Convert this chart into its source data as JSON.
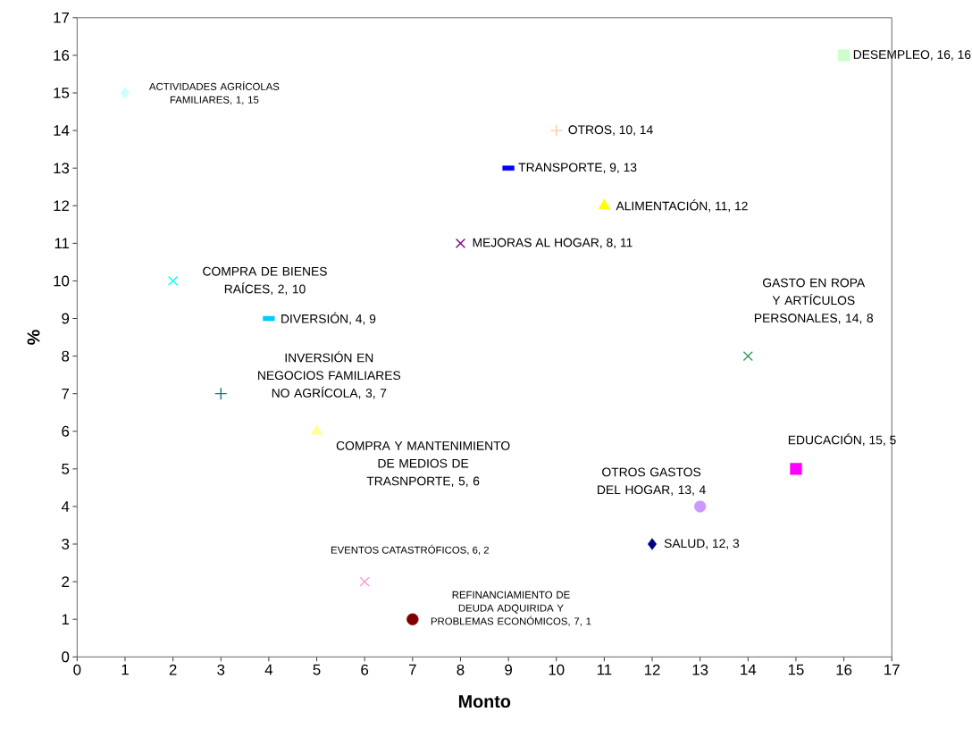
{
  "chart_data": {
    "type": "scatter",
    "xlabel": "Monto",
    "ylabel": "%",
    "xlim": [
      0,
      17
    ],
    "ylim": [
      0,
      17
    ],
    "xticks": [
      0,
      1,
      2,
      3,
      4,
      5,
      6,
      7,
      8,
      9,
      10,
      11,
      12,
      13,
      14,
      15,
      16,
      17
    ],
    "yticks": [
      0,
      1,
      2,
      3,
      4,
      5,
      6,
      7,
      8,
      9,
      10,
      11,
      12,
      13,
      14,
      15,
      16,
      17
    ],
    "grid": false,
    "series": [
      {
        "x": [
          1
        ],
        "values": [
          15
        ],
        "color": "#ccffff",
        "marker": "diamond"
      },
      {
        "x": [
          2
        ],
        "values": [
          10
        ],
        "color": "#00ffff",
        "marker": "cross"
      },
      {
        "x": [
          3
        ],
        "values": [
          7
        ],
        "color": "#008080",
        "marker": "plus"
      },
      {
        "x": [
          4
        ],
        "values": [
          9
        ],
        "color": "#00ccff",
        "marker": "square"
      },
      {
        "x": [
          5
        ],
        "values": [
          6
        ],
        "color": "#ffff99",
        "marker": "triangle"
      },
      {
        "x": [
          6
        ],
        "values": [
          2
        ],
        "color": "#ff99cc",
        "marker": "cross"
      },
      {
        "x": [
          7
        ],
        "values": [
          1
        ],
        "color": "#800000",
        "marker": "circle"
      },
      {
        "x": [
          8
        ],
        "values": [
          11
        ],
        "color": "#800080",
        "marker": "cross"
      },
      {
        "x": [
          9
        ],
        "values": [
          13
        ],
        "color": "#0000ff",
        "marker": "square"
      },
      {
        "x": [
          10
        ],
        "values": [
          14
        ],
        "color": "#ffcc99",
        "marker": "plus"
      },
      {
        "x": [
          11
        ],
        "values": [
          12
        ],
        "color": "#ffff00",
        "marker": "triangle"
      },
      {
        "x": [
          12
        ],
        "values": [
          3
        ],
        "color": "#000080",
        "marker": "diamond"
      },
      {
        "x": [
          13
        ],
        "values": [
          4
        ],
        "color": "#cc99ff",
        "marker": "circle"
      },
      {
        "x": [
          14
        ],
        "values": [
          8
        ],
        "color": "#339966",
        "marker": "cross"
      },
      {
        "x": [
          15
        ],
        "values": [
          5
        ],
        "color": "#ff00ff",
        "marker": "square"
      },
      {
        "x": [
          16
        ],
        "values": [
          16
        ],
        "color": "#ccffcc",
        "marker": "square"
      }
    ],
    "annotations": [
      "ACTIVIDADES AGRÍCOLAS FAMILIARES, 1, 15",
      "COMPRA DE BIENES RAÍCES, 2, 10",
      "INVERSIÓN EN NEGOCIOS FAMILIARES NO AGRÍCOLA, 3, 7",
      "DIVERSIÓN, 4, 9",
      "COMPRA Y MANTENIMIENTO DE MEDIOS DE TRASNPORTE, 5, 6",
      "EVENTOS CATASTRÓFICOS, 6, 2",
      "REFINANCIAMIENTO DE DEUDA ADQUIRIDA Y PROBLEMAS ECONÓMICOS, 7, 1",
      "MEJORAS AL HOGAR, 8, 11",
      "TRANSPORTE, 9, 13",
      "OTROS, 10, 14",
      "ALIMENTACIÓN, 11, 12",
      "SALUD, 12, 3",
      "OTROS GASTOS DEL HOGAR, 13, 4",
      "GASTO EN ROPA Y ARTÍCULOS PERSONALES, 14, 8",
      "EDUCACIÓN, 15, 5",
      "DESEMPLEO, 16, 16"
    ]
  }
}
